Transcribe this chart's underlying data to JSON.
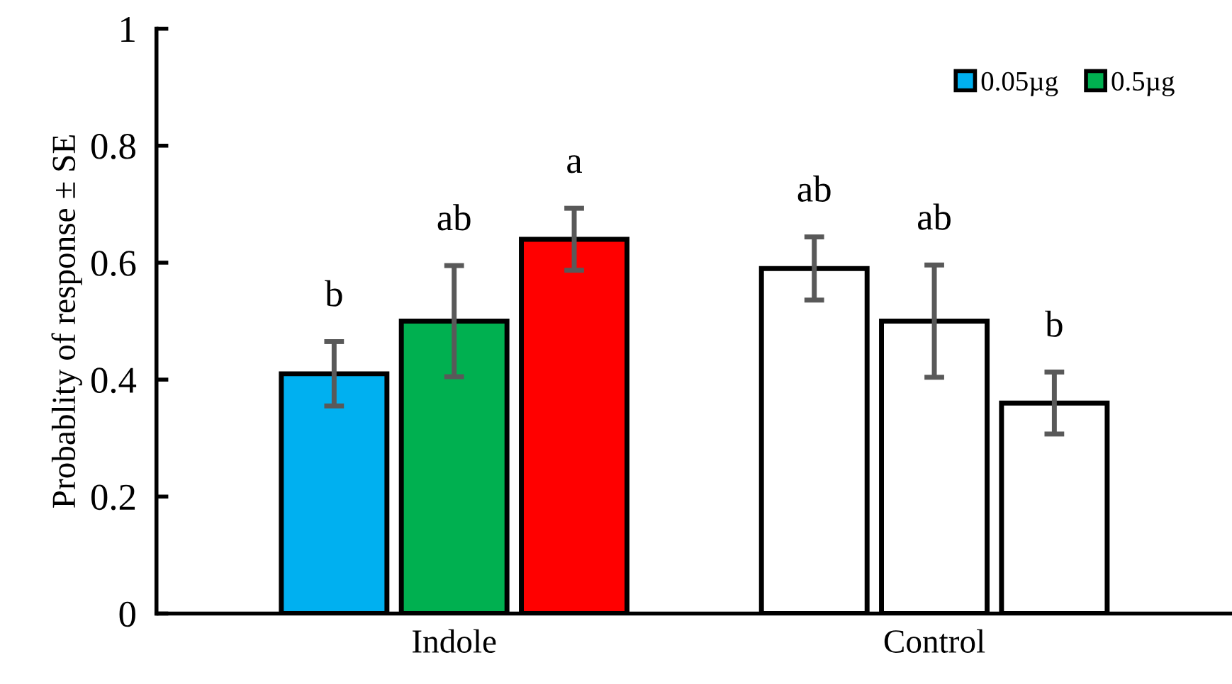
{
  "chart_data": {
    "type": "bar",
    "ylabel": "Probablity of response ± SE",
    "categories": [
      "Indole",
      "Control"
    ],
    "series": [
      {
        "name": "0.05µg",
        "color": "#00b0f0",
        "colors": [
          "#00b0f0",
          "#ffffff"
        ],
        "values": [
          0.41,
          0.59
        ],
        "errors": [
          0.055,
          0.054
        ]
      },
      {
        "name": "0.5µg",
        "color": "#00b050",
        "colors": [
          "#00b050",
          "#ffffff"
        ],
        "values": [
          0.5,
          0.5
        ],
        "errors": [
          0.095,
          0.096
        ]
      },
      {
        "color": "#ff0000",
        "colors": [
          "#ff0000",
          "#ffffff"
        ],
        "values": [
          0.64,
          0.36
        ],
        "errors": [
          0.053,
          0.053
        ]
      }
    ],
    "ylim": [
      0,
      1
    ],
    "yticks": [
      0,
      0.2,
      0.4,
      0.6,
      0.8,
      1
    ],
    "grid": false,
    "legend": "top right",
    "annotations": [
      "b",
      "ab",
      "a",
      "ab",
      "ab",
      "b"
    ]
  }
}
